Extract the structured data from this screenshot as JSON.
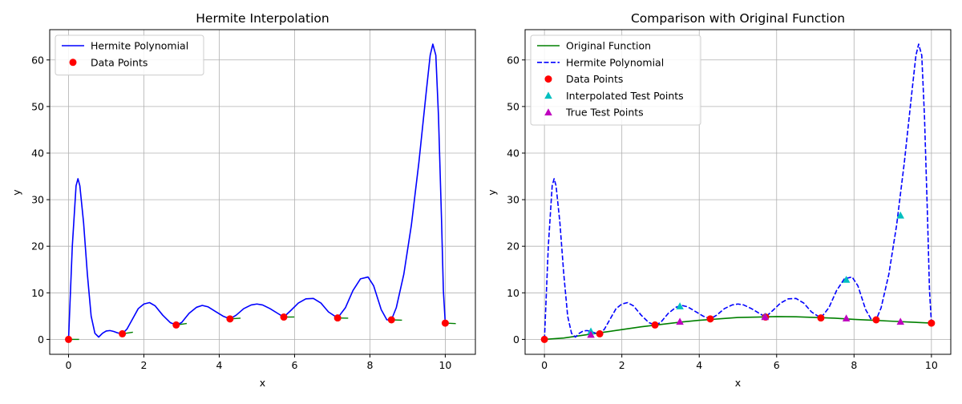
{
  "chart_data": [
    {
      "type": "line",
      "title": "Hermite Interpolation",
      "xlabel": "x",
      "ylabel": "y",
      "xlim": [
        -0.5,
        10.8
      ],
      "ylim": [
        -3.2,
        66.5
      ],
      "xticks": [
        0,
        2,
        4,
        6,
        8,
        10
      ],
      "yticks": [
        0,
        10,
        20,
        30,
        40,
        50,
        60
      ],
      "grid": true,
      "legend_position": "top-left",
      "series": [
        {
          "name": "Hermite Polynomial",
          "kind": "line",
          "style": "solid",
          "color": "#0000ff",
          "x": [
            0,
            0.1,
            0.2,
            0.25,
            0.3,
            0.4,
            0.5,
            0.6,
            0.7,
            0.8,
            0.9,
            1.0,
            1.1,
            1.2,
            1.3,
            1.4286,
            1.55,
            1.7,
            1.85,
            2.0,
            2.15,
            2.3,
            2.5,
            2.7,
            2.8571,
            3.0,
            3.2,
            3.4,
            3.55,
            3.7,
            3.9,
            4.1,
            4.2857,
            4.45,
            4.65,
            4.85,
            5.0,
            5.15,
            5.35,
            5.55,
            5.7143,
            5.9,
            6.1,
            6.3,
            6.5,
            6.7,
            6.9,
            7.1429,
            7.35,
            7.55,
            7.75,
            7.95,
            8.1,
            8.3,
            8.45,
            8.5714,
            8.7,
            8.9,
            9.1,
            9.3,
            9.5,
            9.6,
            9.67,
            9.75,
            9.82,
            9.9,
            9.95,
            10.0
          ],
          "y": [
            0,
            20,
            33,
            34.5,
            33,
            25,
            14,
            5,
            1.3,
            0.5,
            1.3,
            1.8,
            1.9,
            1.7,
            1.4,
            1.2,
            2.2,
            4.4,
            6.6,
            7.6,
            7.9,
            7.2,
            5.2,
            3.6,
            3.1,
            3.6,
            5.6,
            6.9,
            7.3,
            7.0,
            6.0,
            5.0,
            4.4,
            5.2,
            6.6,
            7.4,
            7.6,
            7.4,
            6.6,
            5.6,
            4.8,
            6.2,
            7.8,
            8.7,
            8.8,
            7.8,
            5.9,
            4.6,
            6.8,
            10.5,
            13.0,
            13.4,
            11.5,
            6.4,
            4.2,
            4.2,
            6.8,
            14.0,
            24.5,
            38.0,
            53.5,
            61.0,
            63.4,
            61.0,
            48.0,
            26.0,
            10.5,
            3.5
          ]
        },
        {
          "name": "Data Points",
          "kind": "marker",
          "marker": "circle",
          "color": "#ff0000",
          "x": [
            0,
            1.4286,
            2.8571,
            4.2857,
            5.7143,
            7.1429,
            8.5714,
            10.0
          ],
          "y": [
            0,
            1.2,
            3.1,
            4.4,
            4.8,
            4.6,
            4.2,
            3.5
          ]
        },
        {
          "kind": "tangent",
          "color": "#008000",
          "x": [
            0,
            1.4286,
            2.8571,
            4.2857,
            5.7143,
            7.1429,
            8.5714,
            10.0
          ],
          "y": [
            0,
            1.2,
            3.1,
            4.4,
            4.8,
            4.6,
            4.2,
            3.5
          ],
          "slope": [
            0,
            1.25,
            1.1,
            0.55,
            0.05,
            -0.15,
            -0.28,
            -0.35
          ]
        }
      ]
    },
    {
      "type": "line",
      "title": "Comparison with Original Function",
      "xlabel": "x",
      "ylabel": "y",
      "xlim": [
        -0.5,
        10.5
      ],
      "ylim": [
        -3.2,
        66.5
      ],
      "xticks": [
        0,
        2,
        4,
        6,
        8,
        10
      ],
      "yticks": [
        0,
        10,
        20,
        30,
        40,
        50,
        60
      ],
      "grid": true,
      "legend_position": "top-left",
      "series": [
        {
          "name": "Original Function",
          "kind": "line",
          "style": "solid",
          "color": "#008000",
          "x": [
            0,
            0.5,
            1,
            1.5,
            2,
            2.5,
            3,
            3.5,
            4,
            4.5,
            5,
            5.5,
            6,
            6.5,
            7,
            7.5,
            8,
            8.5,
            9,
            9.5,
            10
          ],
          "y": [
            0,
            0.3,
            0.9,
            1.5,
            2.1,
            2.7,
            3.2,
            3.7,
            4.1,
            4.4,
            4.7,
            4.8,
            4.9,
            4.85,
            4.7,
            4.55,
            4.3,
            4.1,
            3.9,
            3.7,
            3.5
          ]
        },
        {
          "name": "Hermite Polynomial",
          "kind": "line",
          "style": "dashed",
          "color": "#0000ff",
          "x": [
            0,
            0.1,
            0.2,
            0.25,
            0.3,
            0.4,
            0.5,
            0.6,
            0.7,
            0.8,
            0.9,
            1.0,
            1.1,
            1.2,
            1.3,
            1.4286,
            1.55,
            1.7,
            1.85,
            2.0,
            2.15,
            2.3,
            2.5,
            2.7,
            2.8571,
            3.0,
            3.2,
            3.4,
            3.55,
            3.7,
            3.9,
            4.1,
            4.2857,
            4.45,
            4.65,
            4.85,
            5.0,
            5.15,
            5.35,
            5.55,
            5.7143,
            5.9,
            6.1,
            6.3,
            6.5,
            6.7,
            6.9,
            7.1429,
            7.35,
            7.55,
            7.75,
            7.95,
            8.1,
            8.3,
            8.45,
            8.5714,
            8.7,
            8.9,
            9.1,
            9.3,
            9.5,
            9.6,
            9.67,
            9.75,
            9.82,
            9.9,
            9.95,
            10.0
          ],
          "y": [
            0,
            20,
            33,
            34.5,
            33,
            25,
            14,
            5,
            1.3,
            0.5,
            1.3,
            1.8,
            1.9,
            1.7,
            1.4,
            1.2,
            2.2,
            4.4,
            6.6,
            7.6,
            7.9,
            7.2,
            5.2,
            3.6,
            3.1,
            3.6,
            5.6,
            6.9,
            7.3,
            7.0,
            6.0,
            5.0,
            4.4,
            5.2,
            6.6,
            7.4,
            7.6,
            7.4,
            6.6,
            5.6,
            4.8,
            6.2,
            7.8,
            8.7,
            8.8,
            7.8,
            5.9,
            4.6,
            6.8,
            10.5,
            13.0,
            13.4,
            11.5,
            6.4,
            4.2,
            4.2,
            6.8,
            14.0,
            24.5,
            38.0,
            53.5,
            61.0,
            63.4,
            61.0,
            48.0,
            26.0,
            10.5,
            3.5
          ]
        },
        {
          "name": "Data Points",
          "kind": "marker",
          "marker": "circle",
          "color": "#ff0000",
          "x": [
            0,
            1.4286,
            2.8571,
            4.2857,
            5.7143,
            7.1429,
            8.5714,
            10.0
          ],
          "y": [
            0,
            1.2,
            3.1,
            4.4,
            4.8,
            4.6,
            4.2,
            3.5
          ]
        },
        {
          "name": "Interpolated Test Points",
          "kind": "marker",
          "marker": "triangle",
          "color": "#00bfbf",
          "x": [
            1.2,
            3.5,
            5.7,
            7.8,
            9.2
          ],
          "y": [
            1.7,
            7.1,
            4.9,
            12.8,
            26.6
          ]
        },
        {
          "name": "True Test Points",
          "kind": "marker",
          "marker": "triangle",
          "color": "#bf00bf",
          "x": [
            1.2,
            3.5,
            5.7,
            7.8,
            9.2
          ],
          "y": [
            1.0,
            3.8,
            4.8,
            4.5,
            3.8
          ]
        }
      ]
    }
  ]
}
